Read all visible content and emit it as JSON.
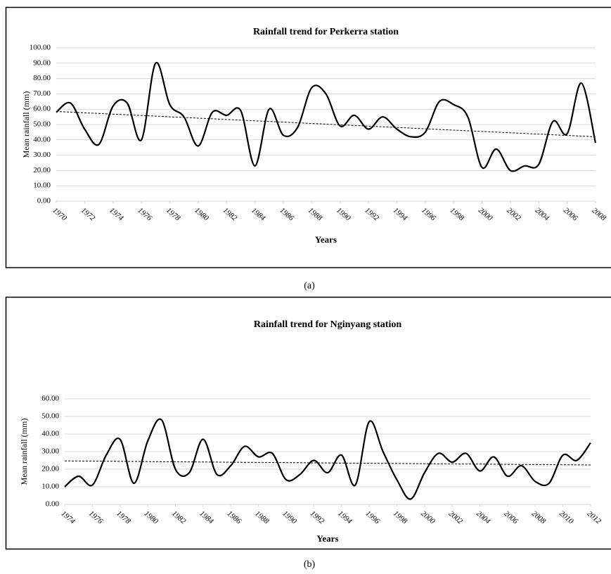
{
  "chart_data": [
    {
      "type": "line",
      "title": "Rainfall trend for Perkerra station",
      "caption": "(a)",
      "x_label": "Years",
      "y_label": "Mean rainfall (mm)",
      "x": [
        1970,
        1971,
        1972,
        1973,
        1974,
        1975,
        1976,
        1977,
        1978,
        1979,
        1980,
        1981,
        1982,
        1983,
        1984,
        1985,
        1986,
        1987,
        1988,
        1989,
        1990,
        1991,
        1992,
        1993,
        1994,
        1995,
        1996,
        1997,
        1998,
        1999,
        2000,
        2001,
        2002,
        2003,
        2004,
        2005,
        2006,
        2007,
        2008
      ],
      "series": [
        {
          "color": "#000000",
          "values": [
            58,
            64,
            47,
            37,
            62,
            64,
            40,
            90,
            63,
            55,
            36,
            58,
            56,
            59,
            23,
            60,
            43,
            48,
            74,
            70,
            49,
            56,
            47,
            55,
            47,
            42,
            45,
            65,
            63,
            55,
            22,
            34,
            20,
            23,
            24,
            52,
            44,
            77,
            38
          ]
        }
      ],
      "trend": [
        58.5,
        42
      ],
      "xlim": [
        1970,
        2008
      ],
      "xticks": [
        1970,
        1972,
        1974,
        1976,
        1978,
        1980,
        1982,
        1984,
        1986,
        1988,
        1990,
        1992,
        1994,
        1996,
        1998,
        2000,
        2002,
        2004,
        2006,
        2008
      ],
      "ylim": [
        0,
        100
      ],
      "yticks": [
        {
          "value": 0,
          "label": "0.00"
        },
        {
          "value": 10,
          "label": "10.00"
        },
        {
          "value": 20,
          "label": "20.00"
        },
        {
          "value": 30,
          "label": "30.00"
        },
        {
          "value": 40,
          "label": "40.00"
        },
        {
          "value": 50,
          "label": "50.00"
        },
        {
          "value": 60,
          "label": "60.00"
        },
        {
          "value": 70,
          "label": "70.00"
        },
        {
          "value": 80,
          "label": "80.00"
        },
        {
          "value": 90,
          "label": "90.00"
        },
        {
          "value": 100,
          "label": "100.00"
        }
      ],
      "grid": true
    },
    {
      "type": "line",
      "title": "Rainfall trend for Nginyang station",
      "caption": "(b)",
      "x_label": "Years",
      "y_label": "Mean rainfall (mm)",
      "x": [
        1974,
        1975,
        1976,
        1977,
        1978,
        1979,
        1980,
        1981,
        1982,
        1983,
        1984,
        1985,
        1986,
        1987,
        1988,
        1989,
        1990,
        1991,
        1992,
        1993,
        1994,
        1995,
        1996,
        1997,
        1998,
        1999,
        2000,
        2001,
        2002,
        2003,
        2004,
        2005,
        2006,
        2007,
        2008,
        2009,
        2010,
        2011,
        2012
      ],
      "series": [
        {
          "color": "#000000",
          "values": [
            10,
            16,
            11,
            28,
            37,
            12,
            36,
            48,
            20,
            18,
            37,
            17,
            22,
            33,
            27,
            29,
            14,
            17,
            25,
            18,
            28,
            11,
            47,
            30,
            14,
            3,
            18,
            29,
            24,
            29,
            19,
            27,
            16,
            22,
            13,
            12,
            28,
            25,
            35
          ]
        }
      ],
      "trend": [
        24.7,
        22.4
      ],
      "xlim": [
        1974,
        2012
      ],
      "xticks": [
        1974,
        1976,
        1978,
        1980,
        1982,
        1984,
        1986,
        1988,
        1990,
        1992,
        1994,
        1996,
        1998,
        2000,
        2002,
        2004,
        2006,
        2008,
        2010,
        2012
      ],
      "ylim": [
        0,
        60
      ],
      "yticks": [
        {
          "value": 0,
          "label": "0.00"
        },
        {
          "value": 10,
          "label": "10.00"
        },
        {
          "value": 20,
          "label": "20.00"
        },
        {
          "value": 30,
          "label": "30.00"
        },
        {
          "value": 40,
          "label": "40.00"
        },
        {
          "value": 50,
          "label": "50.00"
        },
        {
          "value": 60,
          "label": "60.00"
        }
      ],
      "grid": true
    }
  ]
}
